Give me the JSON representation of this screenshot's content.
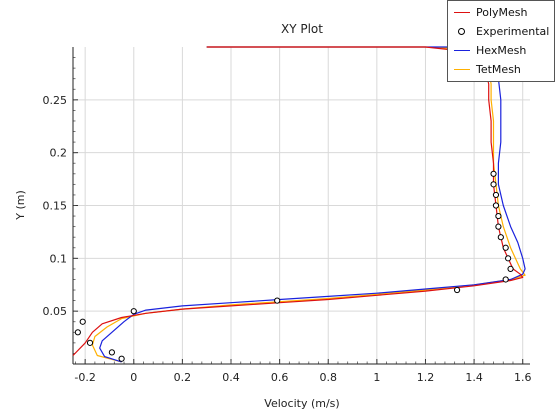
{
  "chart_data": {
    "type": "line",
    "title": "XY Plot",
    "xlabel": "Velocity (m/s)",
    "ylabel": "Y (m)",
    "xlim": [
      -0.25,
      1.63
    ],
    "ylim": [
      0.0,
      0.3
    ],
    "xticks": [
      "-0.2",
      "0",
      "0.2",
      "0.4",
      "0.6",
      "0.8",
      "1",
      "1.2",
      "1.4",
      "1.6"
    ],
    "yticks": [
      "0.05",
      "0.1",
      "0.15",
      "0.2",
      "0.25"
    ],
    "grid": true,
    "legend_position": "top-right",
    "series": [
      {
        "name": "PolyMesh",
        "style": "line",
        "color": "#dd1111",
        "points": [
          [
            -0.25,
            0.008
          ],
          [
            -0.2,
            0.02
          ],
          [
            -0.17,
            0.03
          ],
          [
            -0.13,
            0.038
          ],
          [
            -0.05,
            0.044
          ],
          [
            0.05,
            0.048
          ],
          [
            0.2,
            0.052
          ],
          [
            0.4,
            0.055
          ],
          [
            0.6,
            0.058
          ],
          [
            0.8,
            0.061
          ],
          [
            1.0,
            0.065
          ],
          [
            1.2,
            0.069
          ],
          [
            1.4,
            0.074
          ],
          [
            1.55,
            0.079
          ],
          [
            1.6,
            0.082
          ],
          [
            1.59,
            0.085
          ],
          [
            1.56,
            0.09
          ],
          [
            1.54,
            0.1
          ],
          [
            1.52,
            0.11
          ],
          [
            1.5,
            0.13
          ],
          [
            1.49,
            0.15
          ],
          [
            1.48,
            0.17
          ],
          [
            1.48,
            0.19
          ],
          [
            1.47,
            0.21
          ],
          [
            1.47,
            0.23
          ],
          [
            1.46,
            0.25
          ],
          [
            1.46,
            0.265
          ],
          [
            1.45,
            0.275
          ],
          [
            1.44,
            0.287
          ],
          [
            1.4,
            0.295
          ],
          [
            1.2,
            0.3
          ],
          [
            0.8,
            0.3
          ],
          [
            0.3,
            0.3
          ]
        ]
      },
      {
        "name": "Experimental",
        "style": "markers",
        "color": "#000000",
        "points": [
          [
            -0.05,
            0.005
          ],
          [
            -0.09,
            0.011
          ],
          [
            -0.18,
            0.02
          ],
          [
            -0.23,
            0.03
          ],
          [
            -0.21,
            0.04
          ],
          [
            0.0,
            0.05
          ],
          [
            0.59,
            0.06
          ],
          [
            1.33,
            0.07
          ],
          [
            1.53,
            0.08
          ],
          [
            1.55,
            0.09
          ],
          [
            1.54,
            0.1
          ],
          [
            1.53,
            0.11
          ],
          [
            1.51,
            0.12
          ],
          [
            1.5,
            0.13
          ],
          [
            1.5,
            0.14
          ],
          [
            1.49,
            0.15
          ],
          [
            1.49,
            0.16
          ],
          [
            1.48,
            0.17
          ],
          [
            1.48,
            0.18
          ]
        ]
      },
      {
        "name": "HexMesh",
        "style": "line",
        "color": "#1a22dd",
        "points": [
          [
            -0.05,
            0.002
          ],
          [
            -0.12,
            0.007
          ],
          [
            -0.14,
            0.015
          ],
          [
            -0.13,
            0.022
          ],
          [
            -0.09,
            0.03
          ],
          [
            -0.04,
            0.04
          ],
          [
            0.0,
            0.047
          ],
          [
            0.05,
            0.051
          ],
          [
            0.2,
            0.055
          ],
          [
            0.4,
            0.058
          ],
          [
            0.6,
            0.061
          ],
          [
            0.8,
            0.064
          ],
          [
            1.0,
            0.067
          ],
          [
            1.2,
            0.071
          ],
          [
            1.4,
            0.075
          ],
          [
            1.55,
            0.08
          ],
          [
            1.6,
            0.085
          ],
          [
            1.61,
            0.09
          ],
          [
            1.6,
            0.1
          ],
          [
            1.58,
            0.115
          ],
          [
            1.55,
            0.13
          ],
          [
            1.52,
            0.15
          ],
          [
            1.5,
            0.17
          ],
          [
            1.5,
            0.19
          ],
          [
            1.51,
            0.21
          ],
          [
            1.51,
            0.23
          ],
          [
            1.51,
            0.25
          ],
          [
            1.5,
            0.27
          ],
          [
            1.48,
            0.285
          ],
          [
            1.45,
            0.295
          ],
          [
            1.3,
            0.3
          ],
          [
            0.8,
            0.3
          ],
          [
            0.3,
            0.3
          ]
        ]
      },
      {
        "name": "TetMesh",
        "style": "line",
        "color": "#ffb000",
        "points": [
          [
            -0.05,
            0.002
          ],
          [
            -0.15,
            0.008
          ],
          [
            -0.17,
            0.018
          ],
          [
            -0.16,
            0.026
          ],
          [
            -0.11,
            0.035
          ],
          [
            -0.05,
            0.043
          ],
          [
            0.05,
            0.048
          ],
          [
            0.2,
            0.052
          ],
          [
            0.4,
            0.056
          ],
          [
            0.6,
            0.059
          ],
          [
            0.8,
            0.062
          ],
          [
            1.0,
            0.066
          ],
          [
            1.2,
            0.07
          ],
          [
            1.4,
            0.075
          ],
          [
            1.55,
            0.08
          ],
          [
            1.61,
            0.084
          ],
          [
            1.59,
            0.09
          ],
          [
            1.57,
            0.1
          ],
          [
            1.55,
            0.11
          ],
          [
            1.52,
            0.13
          ],
          [
            1.5,
            0.15
          ],
          [
            1.49,
            0.17
          ],
          [
            1.48,
            0.19
          ],
          [
            1.48,
            0.21
          ],
          [
            1.48,
            0.23
          ],
          [
            1.47,
            0.25
          ],
          [
            1.47,
            0.265
          ],
          [
            1.46,
            0.277
          ],
          [
            1.44,
            0.29
          ],
          [
            1.38,
            0.298
          ],
          [
            1.2,
            0.3
          ],
          [
            0.8,
            0.3
          ],
          [
            0.3,
            0.3
          ]
        ]
      }
    ]
  }
}
